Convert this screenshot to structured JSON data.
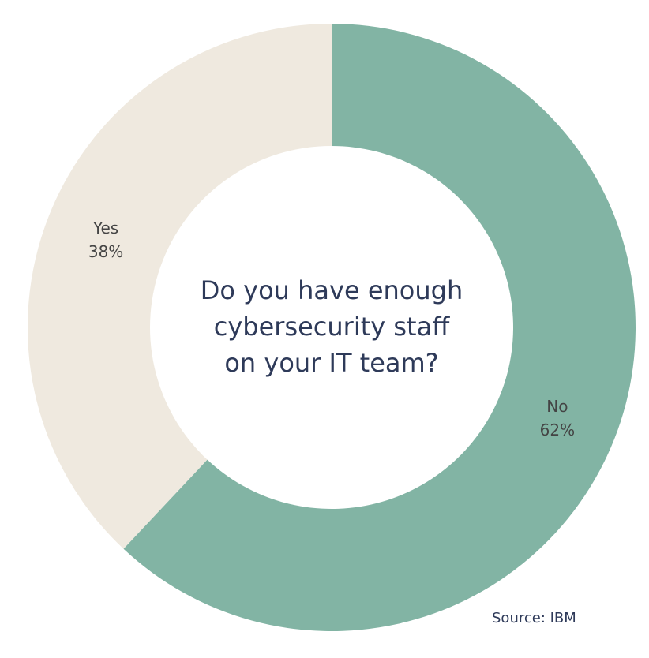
{
  "chart_data": {
    "type": "pie",
    "subtype": "donut",
    "title_lines": [
      "Do you have enough",
      "cybersecurity staff",
      "on your IT team?"
    ],
    "slices": [
      {
        "label": "No",
        "value": 62,
        "value_label": "62%",
        "color": "#82b4a4"
      },
      {
        "label": "Yes",
        "value": 38,
        "value_label": "38%",
        "color": "#efe9df"
      }
    ],
    "start": "top",
    "direction": "clockwise",
    "source": "Source: IBM"
  }
}
